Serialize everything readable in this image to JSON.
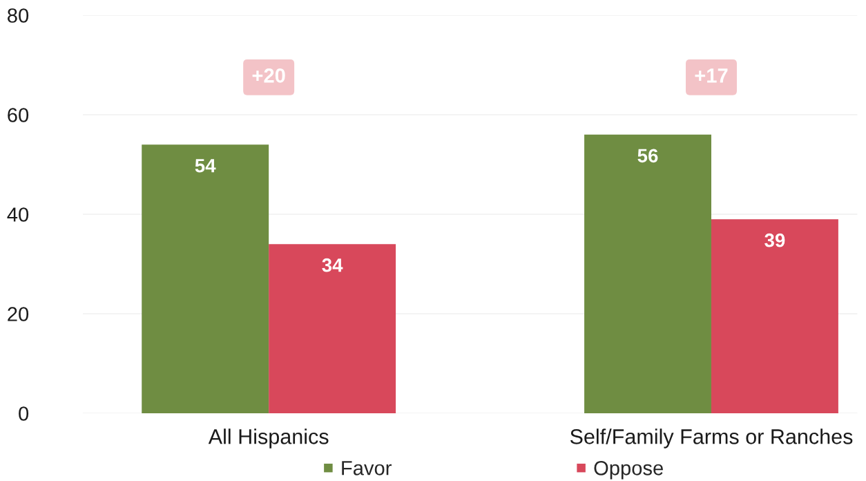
{
  "chart_data": {
    "type": "bar",
    "categories": [
      "All Hispanics",
      "Self/Family Farms or Ranches"
    ],
    "series": [
      {
        "name": "Favor",
        "color": "#6f8d42",
        "values": [
          54,
          56
        ]
      },
      {
        "name": "Oppose",
        "color": "#d8485b",
        "values": [
          34,
          39
        ]
      }
    ],
    "ylim": [
      0,
      80
    ],
    "yticks": [
      0,
      20,
      40,
      60,
      80
    ],
    "data_labels": true,
    "grid": "y",
    "legend": "bottom",
    "annotations": [
      "+20",
      "+17"
    ]
  }
}
